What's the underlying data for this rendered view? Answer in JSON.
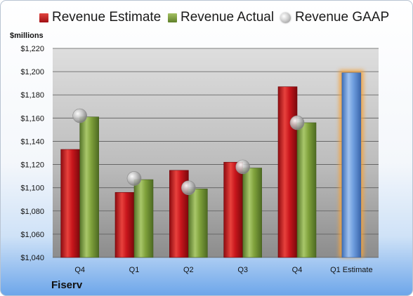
{
  "legend": {
    "estimate": "Revenue Estimate",
    "actual": "Revenue Actual",
    "gaap": "Revenue GAAP"
  },
  "units_label": "$millions",
  "company": "Fiserv",
  "colors": {
    "estimate": "#c8161c",
    "actual": "#7fa13b",
    "gaap_marker": "#a0a0a0",
    "forecast_bar": "#6f9edf",
    "forecast_glow": "#f5a33a"
  },
  "chart_data": {
    "type": "bar",
    "categories": [
      "Q4",
      "Q1",
      "Q2",
      "Q3",
      "Q4",
      "Q1 Estimate"
    ],
    "ylim": [
      1040,
      1220
    ],
    "yticks": [
      1040,
      1060,
      1080,
      1100,
      1120,
      1140,
      1160,
      1180,
      1200,
      1220
    ],
    "ytick_labels": [
      "$1,040",
      "$1,060",
      "$1,080",
      "$1,100",
      "$1,120",
      "$1,140",
      "$1,160",
      "$1,180",
      "$1,200",
      "$1,220"
    ],
    "ylabel": "$millions",
    "grid": true,
    "legend_position": "top",
    "series": [
      {
        "name": "Revenue Estimate",
        "type": "bar",
        "values": [
          1133,
          1096,
          1115,
          1122,
          1187,
          1199
        ]
      },
      {
        "name": "Revenue Actual",
        "type": "bar",
        "values": [
          1161,
          1107,
          1099,
          1117,
          1156,
          null
        ]
      },
      {
        "name": "Revenue GAAP",
        "type": "scatter",
        "values": [
          1162,
          1108,
          1100,
          1118,
          1156,
          null
        ]
      }
    ]
  }
}
